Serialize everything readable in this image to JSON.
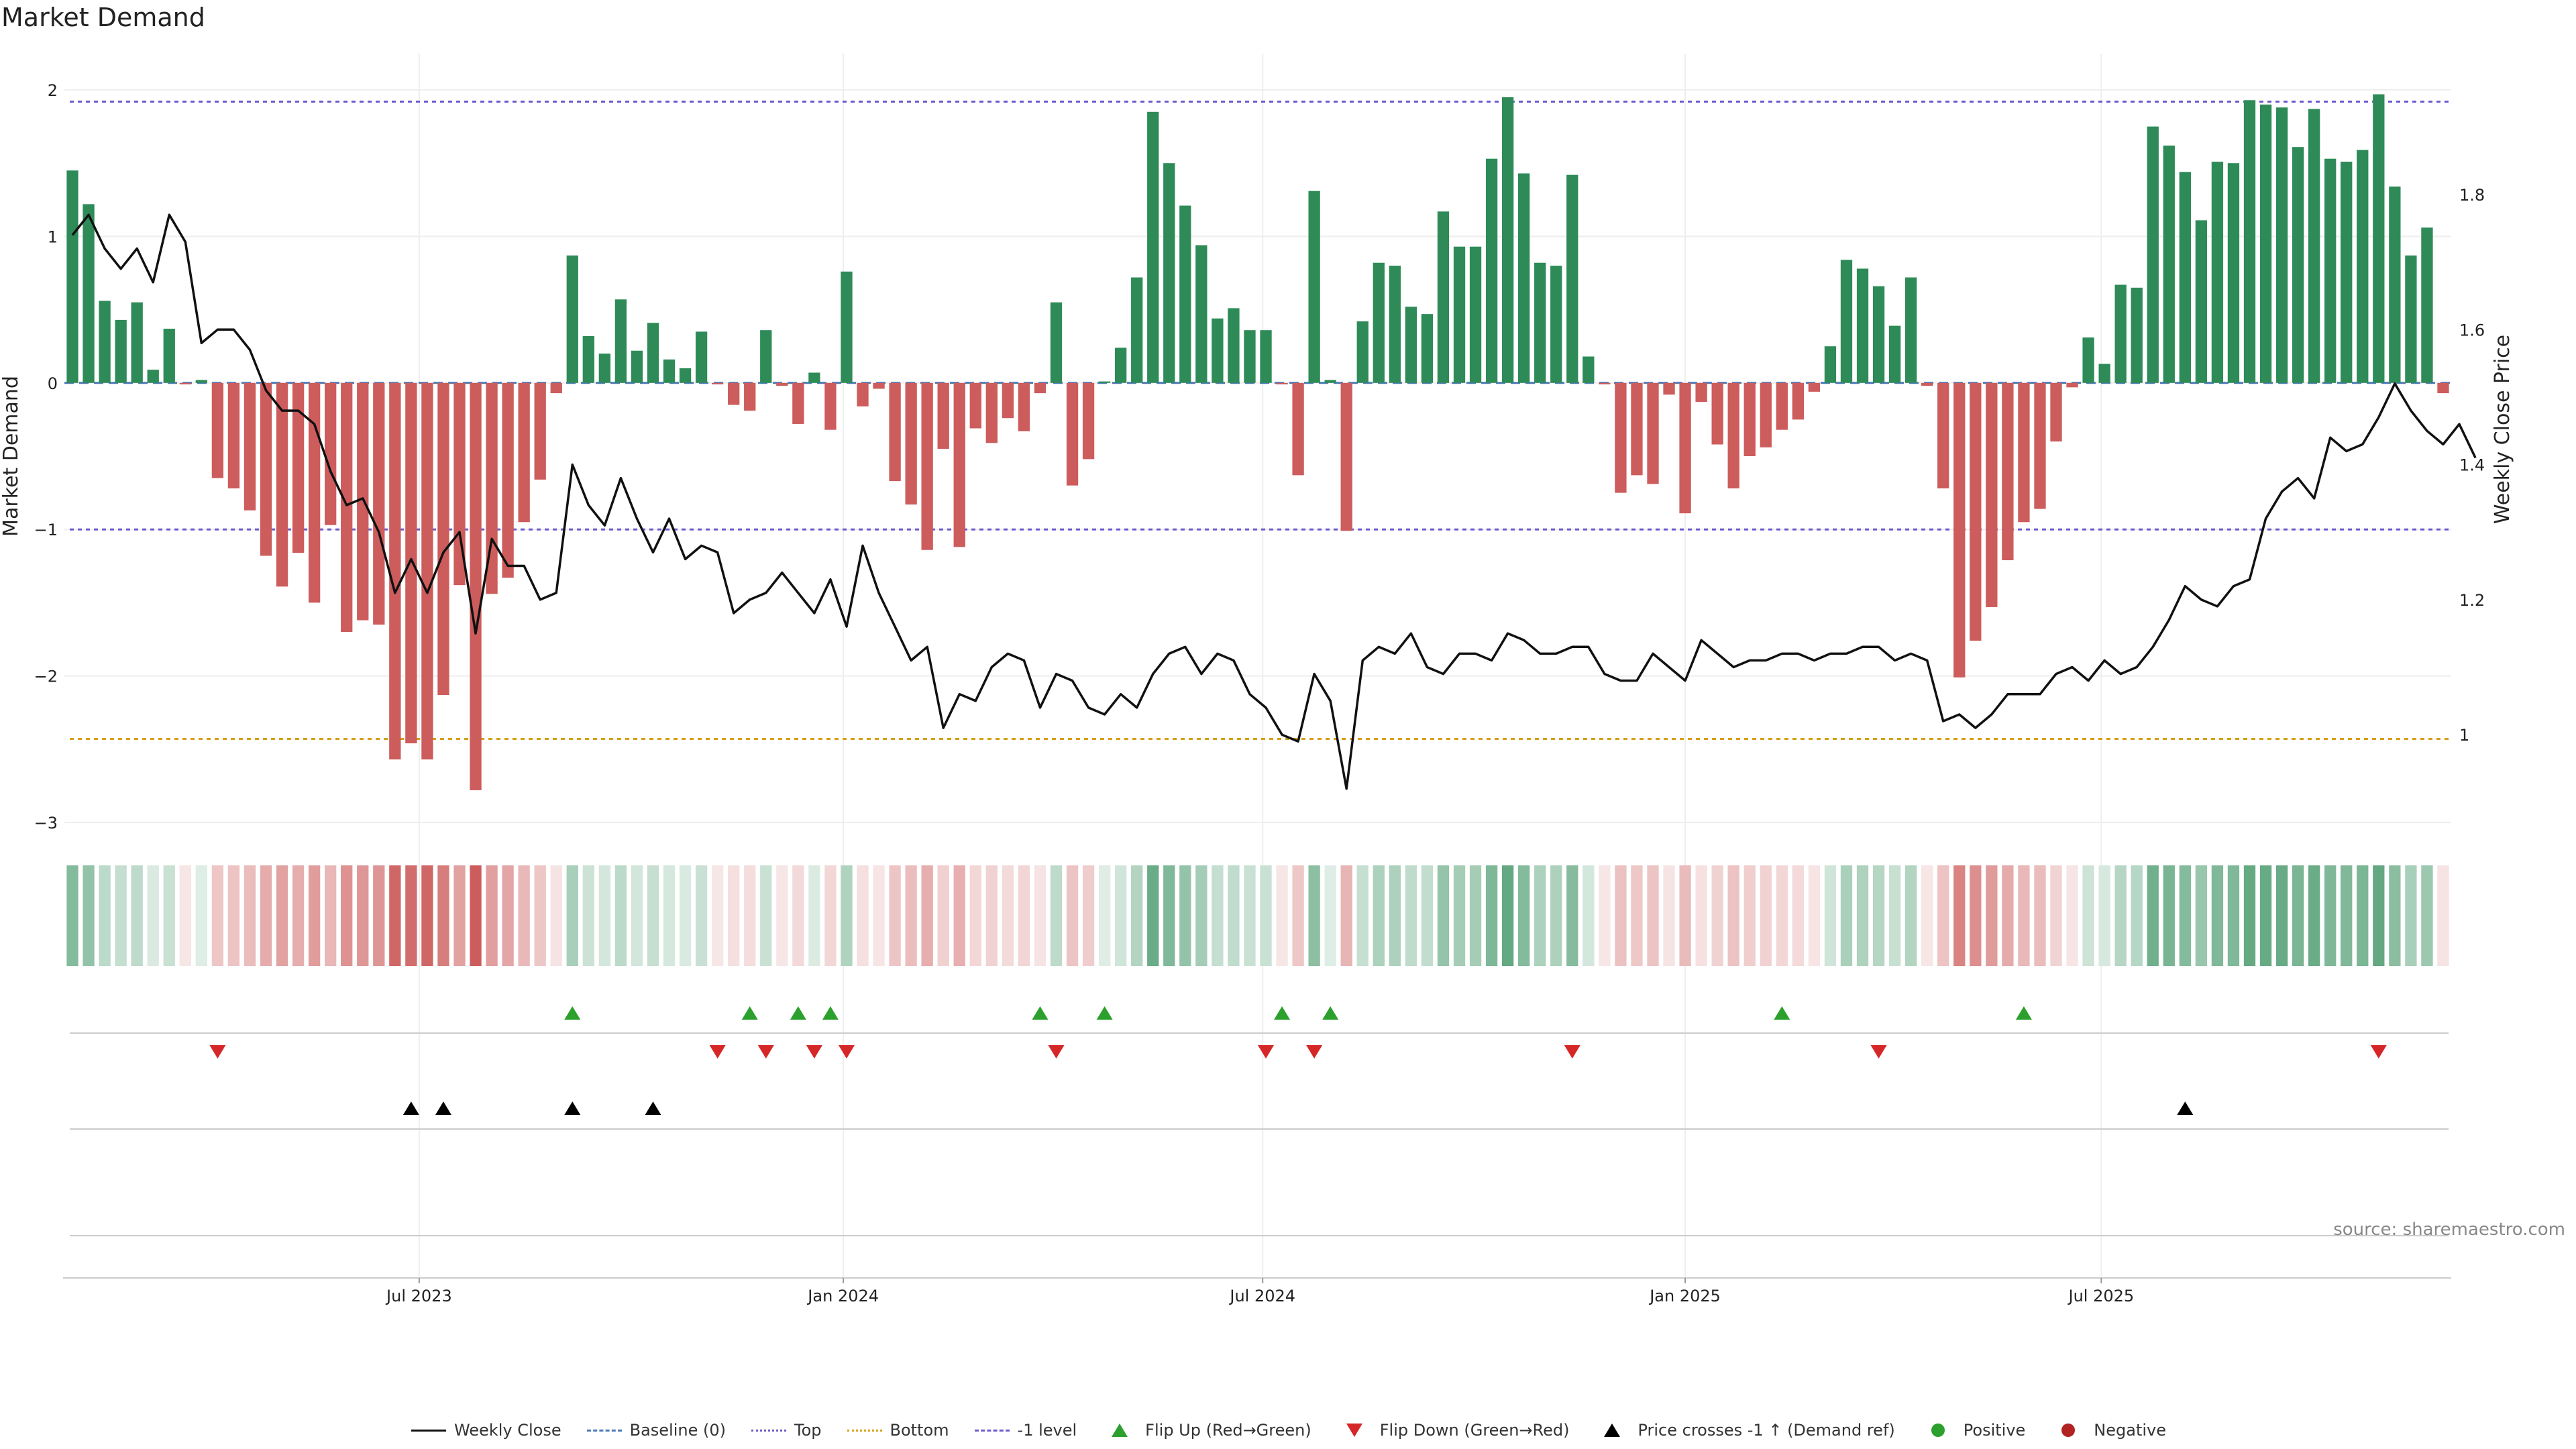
{
  "title": "Market Demand",
  "source": "source: sharemaestro.com",
  "colors": {
    "positive": "#2e8b57",
    "negative": "#cd5c5c",
    "price_line": "#111111",
    "top_line": "#6a5acd",
    "bottom_line": "#d4a017",
    "minus1_line": "#6a5acd",
    "baseline": "#4a78b5",
    "flip_up": "#2ca02c",
    "flip_down": "#d62728",
    "cross": "#000000",
    "positive_dot": "#2ca02c",
    "negative_dot": "#b22222"
  },
  "chart_data": {
    "type": "bar",
    "title": "Market Demand",
    "xlabel": "",
    "ylabel": "Market Demand",
    "y2label": "Weekly Close Price",
    "ylim": [
      -3.0,
      2.0
    ],
    "y2lim": [
      0.87,
      1.955
    ],
    "yticks": [
      2,
      1,
      0,
      -1,
      -2,
      -3
    ],
    "y2ticks": [
      "1.8",
      "1.6",
      "1.4",
      "1.2",
      "1"
    ],
    "y2tick_values": [
      1.8,
      1.6,
      1.4,
      1.2,
      1.0
    ],
    "xticks": [
      "Jul 2023",
      "Jan 2024",
      "Jul 2024",
      "Jan 2025",
      "Jul 2025"
    ],
    "xtick_index": [
      22,
      48.3,
      74.3,
      100.5,
      126.3
    ],
    "reference_levels": {
      "top": 1.92,
      "bottom": -2.43,
      "minus1": -1.0,
      "baseline": 0
    },
    "series": [
      {
        "name": "Market Demand",
        "values": [
          1.45,
          1.22,
          0.56,
          0.43,
          0.55,
          0.09,
          0.37,
          -0.01,
          0.02,
          -0.65,
          -0.72,
          -0.87,
          -1.18,
          -1.39,
          -1.16,
          -1.5,
          -0.97,
          -1.7,
          -1.62,
          -1.65,
          -2.57,
          -2.46,
          -2.57,
          -2.13,
          -1.38,
          -2.78,
          -1.44,
          -1.33,
          -0.95,
          -0.66,
          -0.07,
          0.87,
          0.32,
          0.2,
          0.57,
          0.22,
          0.41,
          0.16,
          0.1,
          0.35,
          -0.01,
          -0.15,
          -0.19,
          0.36,
          -0.02,
          -0.28,
          0.07,
          -0.32,
          0.76,
          -0.16,
          -0.04,
          -0.67,
          -0.83,
          -1.14,
          -0.45,
          -1.12,
          -0.31,
          -0.41,
          -0.24,
          -0.33,
          -0.07,
          0.55,
          -0.7,
          -0.52,
          0.01,
          0.24,
          0.72,
          1.85,
          1.5,
          1.21,
          0.94,
          0.44,
          0.51,
          0.36,
          0.36,
          -0.01,
          -0.63,
          1.31,
          0.02,
          -1.01,
          0.42,
          0.82,
          0.8,
          0.52,
          0.47,
          1.17,
          0.93,
          0.93,
          1.53,
          1.95,
          1.43,
          0.82,
          0.8,
          1.42,
          0.18,
          -0.01,
          -0.75,
          -0.63,
          -0.69,
          -0.08,
          -0.89,
          -0.13,
          -0.42,
          -0.72,
          -0.5,
          -0.44,
          -0.32,
          -0.25,
          -0.06,
          0.25,
          0.84,
          0.78,
          0.66,
          0.39,
          0.72,
          -0.02,
          -0.72,
          -2.01,
          -1.76,
          -1.53,
          -1.21,
          -0.95,
          -0.86,
          -0.4,
          -0.03,
          0.31,
          0.13,
          0.67,
          0.65,
          1.75,
          1.62,
          1.44,
          1.11,
          1.51,
          1.5,
          1.93,
          1.9,
          1.88,
          1.61,
          1.87,
          1.53,
          1.51,
          1.59,
          1.97,
          1.34,
          0.87,
          1.06,
          -0.07
        ]
      },
      {
        "name": "Weekly Close",
        "values": [
          1.74,
          1.77,
          1.72,
          1.69,
          1.72,
          1.67,
          1.77,
          1.73,
          1.58,
          1.6,
          1.6,
          1.57,
          1.51,
          1.48,
          1.48,
          1.46,
          1.39,
          1.34,
          1.35,
          1.3,
          1.21,
          1.26,
          1.21,
          1.27,
          1.3,
          1.15,
          1.29,
          1.25,
          1.25,
          1.2,
          1.21,
          1.4,
          1.34,
          1.31,
          1.38,
          1.32,
          1.27,
          1.32,
          1.26,
          1.28,
          1.27,
          1.18,
          1.2,
          1.21,
          1.24,
          1.21,
          1.18,
          1.23,
          1.16,
          1.28,
          1.21,
          1.16,
          1.11,
          1.13,
          1.01,
          1.06,
          1.05,
          1.1,
          1.12,
          1.11,
          1.04,
          1.09,
          1.08,
          1.04,
          1.03,
          1.06,
          1.04,
          1.09,
          1.12,
          1.13,
          1.09,
          1.12,
          1.11,
          1.06,
          1.04,
          1.0,
          0.99,
          1.09,
          1.05,
          0.92,
          1.11,
          1.13,
          1.12,
          1.15,
          1.1,
          1.09,
          1.12,
          1.12,
          1.11,
          1.15,
          1.14,
          1.12,
          1.12,
          1.13,
          1.13,
          1.09,
          1.08,
          1.08,
          1.12,
          1.1,
          1.08,
          1.14,
          1.12,
          1.1,
          1.11,
          1.11,
          1.12,
          1.12,
          1.11,
          1.12,
          1.12,
          1.13,
          1.13,
          1.11,
          1.12,
          1.11,
          1.02,
          1.03,
          1.01,
          1.03,
          1.06,
          1.06,
          1.06,
          1.09,
          1.1,
          1.08,
          1.11,
          1.09,
          1.1,
          1.13,
          1.17,
          1.22,
          1.2,
          1.19,
          1.22,
          1.23,
          1.32,
          1.36,
          1.38,
          1.35,
          1.44,
          1.42,
          1.43,
          1.47,
          1.52,
          1.48,
          1.45,
          1.43,
          1.46,
          1.41
        ]
      }
    ],
    "flip_up_index": [
      31,
      42,
      45,
      47,
      60,
      64,
      75,
      78,
      106,
      121
    ],
    "flip_down_index": [
      9,
      40,
      43,
      46,
      48,
      61,
      74,
      77,
      93,
      112,
      143
    ],
    "cross_up_index": [
      21,
      23,
      31,
      36,
      131
    ],
    "legend": [
      "Weekly Close",
      "Baseline (0)",
      "Top",
      "Bottom",
      "-1 level",
      "Flip Up (Red→Green)",
      "Flip Down (Green→Red)",
      "Price crosses -1 ↑ (Demand ref)",
      "Positive",
      "Negative"
    ]
  }
}
